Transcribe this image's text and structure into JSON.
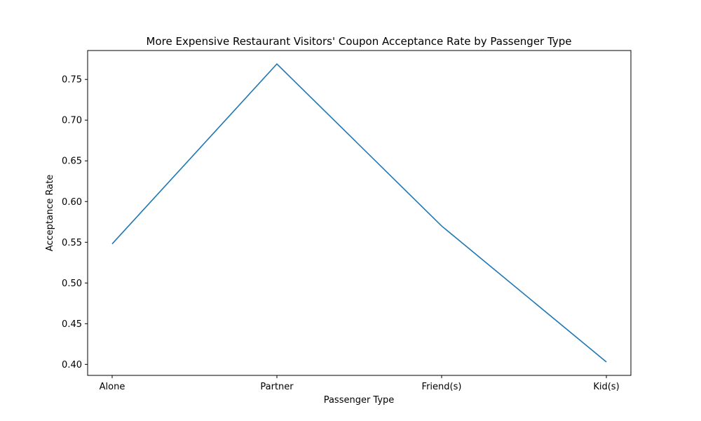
{
  "chart_data": {
    "type": "line",
    "title": "More Expensive Restaurant Visitors' Coupon Acceptance Rate by Passenger Type",
    "xlabel": "Passenger Type",
    "ylabel": "Acceptance Rate",
    "categories": [
      "Alone",
      "Partner",
      "Friend(s)",
      "Kid(s)"
    ],
    "series": [
      {
        "values": [
          0.548,
          0.769,
          0.57,
          0.403
        ]
      }
    ],
    "ylim": [
      0.3865,
      0.7855
    ],
    "yticks": [
      0.4,
      0.45,
      0.5,
      0.55,
      0.6,
      0.65,
      0.7,
      0.75
    ],
    "ytick_labels": [
      "0.40",
      "0.45",
      "0.50",
      "0.55",
      "0.60",
      "0.65",
      "0.70",
      "0.75"
    ],
    "grid": false,
    "line_color": "#1f77b4"
  }
}
